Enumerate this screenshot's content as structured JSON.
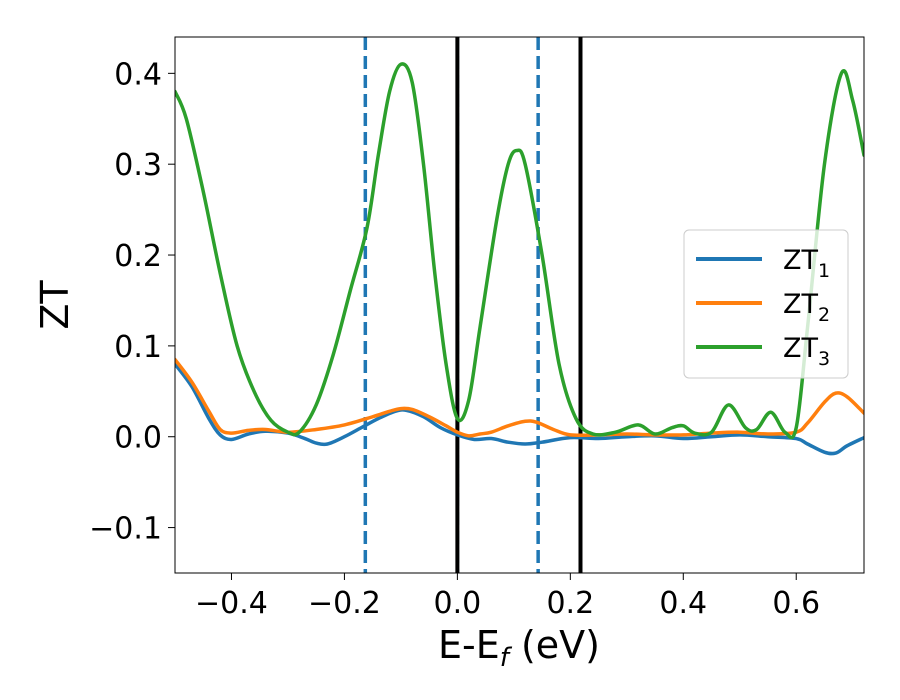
{
  "chart_data": {
    "type": "line",
    "xlabel": "E-E",
    "xlabel_sub": "f",
    "xlabel_unit": " (eV)",
    "ylabel": "ZT",
    "xlim": [
      -0.5,
      0.72
    ],
    "ylim": [
      -0.15,
      0.44
    ],
    "xticks": [
      -0.4,
      -0.2,
      0.0,
      0.2,
      0.4,
      0.6
    ],
    "xtick_labels": [
      "−0.4",
      "−0.2",
      "0.0",
      "0.2",
      "0.4",
      "0.6"
    ],
    "yticks": [
      -0.1,
      0.0,
      0.1,
      0.2,
      0.3,
      0.4
    ],
    "ytick_labels": [
      "−0.1",
      "0.0",
      "0.1",
      "0.2",
      "0.3",
      "0.4"
    ],
    "grid": false,
    "legend_position": "center-right",
    "vertical_lines": [
      {
        "x": -0.163,
        "color": "#1f77b4",
        "style": "dashed"
      },
      {
        "x": 0.0,
        "color": "#1f77b4",
        "style": "dashed"
      },
      {
        "x": 0.143,
        "color": "#1f77b4",
        "style": "dashed"
      },
      {
        "x": 0.0,
        "color": "#000000",
        "style": "solid"
      },
      {
        "x": 0.218,
        "color": "#000000",
        "style": "solid"
      }
    ],
    "series": [
      {
        "name": "ZT",
        "name_sub": "1",
        "color": "#1f77b4",
        "points": [
          [
            -0.5,
            0.08
          ],
          [
            -0.47,
            0.055
          ],
          [
            -0.44,
            0.02
          ],
          [
            -0.42,
            0.002
          ],
          [
            -0.4,
            -0.003
          ],
          [
            -0.37,
            0.003
          ],
          [
            -0.34,
            0.006
          ],
          [
            -0.3,
            0.004
          ],
          [
            -0.27,
            -0.002
          ],
          [
            -0.25,
            -0.007
          ],
          [
            -0.23,
            -0.008
          ],
          [
            -0.2,
            0.0
          ],
          [
            -0.17,
            0.01
          ],
          [
            -0.14,
            0.02
          ],
          [
            -0.11,
            0.028
          ],
          [
            -0.09,
            0.029
          ],
          [
            -0.06,
            0.022
          ],
          [
            -0.03,
            0.01
          ],
          [
            0.0,
            0.002
          ],
          [
            0.03,
            -0.003
          ],
          [
            0.06,
            -0.002
          ],
          [
            0.09,
            -0.006
          ],
          [
            0.12,
            -0.008
          ],
          [
            0.15,
            -0.006
          ],
          [
            0.2,
            -0.001
          ],
          [
            0.25,
            -0.002
          ],
          [
            0.3,
            0.0
          ],
          [
            0.35,
            0.001
          ],
          [
            0.4,
            -0.002
          ],
          [
            0.45,
            0.0
          ],
          [
            0.5,
            0.002
          ],
          [
            0.55,
            0.0
          ],
          [
            0.6,
            -0.002
          ],
          [
            0.62,
            -0.008
          ],
          [
            0.65,
            -0.017
          ],
          [
            0.67,
            -0.018
          ],
          [
            0.69,
            -0.01
          ],
          [
            0.72,
            -0.001
          ]
        ]
      },
      {
        "name": "ZT",
        "name_sub": "2",
        "color": "#ff7f0e",
        "points": [
          [
            -0.5,
            0.085
          ],
          [
            -0.47,
            0.06
          ],
          [
            -0.44,
            0.028
          ],
          [
            -0.42,
            0.008
          ],
          [
            -0.4,
            0.004
          ],
          [
            -0.37,
            0.007
          ],
          [
            -0.34,
            0.008
          ],
          [
            -0.3,
            0.005
          ],
          [
            -0.25,
            0.008
          ],
          [
            -0.2,
            0.013
          ],
          [
            -0.15,
            0.022
          ],
          [
            -0.12,
            0.028
          ],
          [
            -0.1,
            0.031
          ],
          [
            -0.08,
            0.03
          ],
          [
            -0.05,
            0.022
          ],
          [
            -0.02,
            0.012
          ],
          [
            0.0,
            0.005
          ],
          [
            0.02,
            0.001
          ],
          [
            0.04,
            0.003
          ],
          [
            0.06,
            0.005
          ],
          [
            0.09,
            0.012
          ],
          [
            0.12,
            0.017
          ],
          [
            0.14,
            0.016
          ],
          [
            0.17,
            0.008
          ],
          [
            0.2,
            0.002
          ],
          [
            0.25,
            0.002
          ],
          [
            0.3,
            0.003
          ],
          [
            0.35,
            0.002
          ],
          [
            0.4,
            0.002
          ],
          [
            0.45,
            0.004
          ],
          [
            0.5,
            0.005
          ],
          [
            0.55,
            0.003
          ],
          [
            0.6,
            0.005
          ],
          [
            0.62,
            0.015
          ],
          [
            0.65,
            0.038
          ],
          [
            0.67,
            0.048
          ],
          [
            0.69,
            0.044
          ],
          [
            0.72,
            0.026
          ]
        ]
      },
      {
        "name": "ZT",
        "name_sub": "3",
        "color": "#2ca02c",
        "points": [
          [
            -0.5,
            0.38
          ],
          [
            -0.48,
            0.35
          ],
          [
            -0.45,
            0.27
          ],
          [
            -0.42,
            0.18
          ],
          [
            -0.39,
            0.1
          ],
          [
            -0.36,
            0.05
          ],
          [
            -0.33,
            0.018
          ],
          [
            -0.3,
            0.005
          ],
          [
            -0.28,
            0.005
          ],
          [
            -0.25,
            0.035
          ],
          [
            -0.22,
            0.09
          ],
          [
            -0.19,
            0.16
          ],
          [
            -0.16,
            0.23
          ],
          [
            -0.14,
            0.31
          ],
          [
            -0.12,
            0.38
          ],
          [
            -0.1,
            0.41
          ],
          [
            -0.08,
            0.39
          ],
          [
            -0.06,
            0.3
          ],
          [
            -0.04,
            0.18
          ],
          [
            -0.02,
            0.08
          ],
          [
            0.0,
            0.02
          ],
          [
            0.02,
            0.04
          ],
          [
            0.04,
            0.12
          ],
          [
            0.07,
            0.24
          ],
          [
            0.09,
            0.3
          ],
          [
            0.105,
            0.315
          ],
          [
            0.12,
            0.3
          ],
          [
            0.15,
            0.2
          ],
          [
            0.18,
            0.08
          ],
          [
            0.21,
            0.02
          ],
          [
            0.24,
            0.003
          ],
          [
            0.28,
            0.005
          ],
          [
            0.32,
            0.013
          ],
          [
            0.35,
            0.003
          ],
          [
            0.38,
            0.01
          ],
          [
            0.4,
            0.012
          ],
          [
            0.42,
            0.004
          ],
          [
            0.45,
            0.005
          ],
          [
            0.48,
            0.035
          ],
          [
            0.51,
            0.01
          ],
          [
            0.53,
            0.008
          ],
          [
            0.555,
            0.027
          ],
          [
            0.58,
            0.005
          ],
          [
            0.6,
            0.01
          ],
          [
            0.62,
            0.12
          ],
          [
            0.65,
            0.3
          ],
          [
            0.68,
            0.4
          ],
          [
            0.7,
            0.37
          ],
          [
            0.72,
            0.31
          ]
        ]
      }
    ]
  }
}
